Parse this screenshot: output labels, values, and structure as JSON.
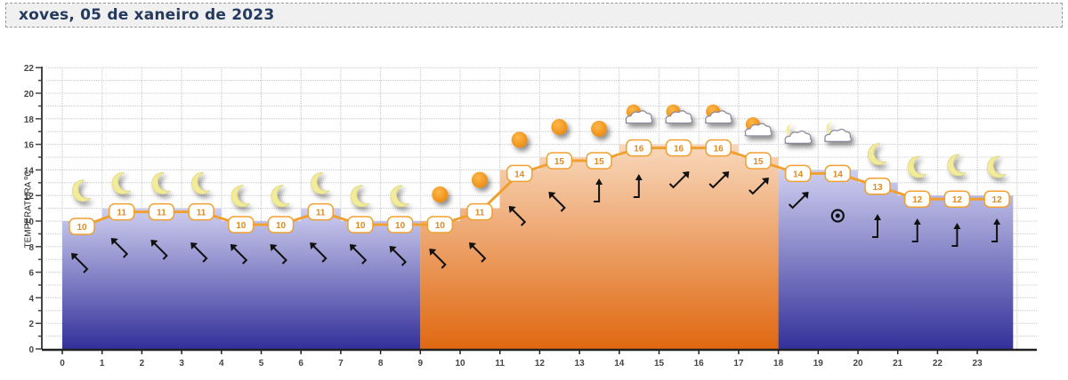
{
  "header": {
    "title": "xoves, 05 de xaneiro de 2023"
  },
  "chart_data": {
    "type": "area",
    "title": "xoves, 05 de xaneiro de 2023",
    "xlabel": "",
    "ylabel": "TEMPERATURA ºC",
    "x": [
      0,
      1,
      2,
      3,
      4,
      5,
      6,
      7,
      8,
      9,
      10,
      11,
      12,
      13,
      14,
      15,
      16,
      17,
      18,
      19,
      20,
      21,
      22,
      23
    ],
    "xticks": [
      "0",
      "1",
      "2",
      "3",
      "4",
      "5",
      "6",
      "7",
      "8",
      "9",
      "10",
      "11",
      "12",
      "13",
      "14",
      "15",
      "16",
      "17",
      "18",
      "19",
      "20",
      "21",
      "22",
      "23"
    ],
    "yticks": [
      "0",
      "2",
      "4",
      "6",
      "8",
      "10",
      "12",
      "14",
      "16",
      "18",
      "20",
      "22"
    ],
    "ylim": [
      0,
      22
    ],
    "grid": true,
    "series": [
      {
        "name": "Temperatura",
        "values": [
          10,
          11,
          11,
          11,
          10,
          10,
          11,
          10,
          10,
          10,
          11,
          14,
          15,
          15,
          16,
          16,
          16,
          15,
          14,
          14,
          13,
          12,
          12,
          12
        ]
      }
    ],
    "periods": [
      {
        "name": "night",
        "from": 0,
        "to": 9,
        "color_top": "#c8c8ec",
        "color_bottom": "#36349a"
      },
      {
        "name": "day",
        "from": 9,
        "to": 18,
        "color_top": "#f6cfb0",
        "color_bottom": "#e06c10"
      },
      {
        "name": "night",
        "from": 18,
        "to": 24,
        "color_top": "#dcdcf2",
        "color_bottom": "#36349a"
      }
    ],
    "sky_icons": [
      "moon",
      "moon",
      "moon",
      "moon",
      "moon",
      "moon",
      "moon",
      "moon",
      "moon",
      "sun",
      "sun",
      "sun",
      "sun",
      "sun",
      "sun-cloud",
      "sun-cloud",
      "sun-cloud",
      "sun-cloud",
      "moon-cloud",
      "moon-cloud",
      "moon",
      "moon",
      "moon",
      "moon"
    ],
    "wind_icons": [
      "arrow-nw",
      "arrow-nw",
      "arrow-nw",
      "arrow-nw",
      "arrow-nw",
      "arrow-nw",
      "arrow-nw",
      "arrow-nw",
      "arrow-nw",
      "arrow-nw",
      "arrow-nw",
      "arrow-nw",
      "arrow-nw",
      "arrow-n",
      "arrow-n",
      "arrow-ne",
      "arrow-ne",
      "arrow-ne",
      "arrow-ne",
      "calm",
      "arrow-n",
      "arrow-n",
      "arrow-n",
      "arrow-n"
    ],
    "colors": {
      "line": "#f0a030",
      "label_text": "#e08a20",
      "label_border": "#f0a030"
    }
  }
}
